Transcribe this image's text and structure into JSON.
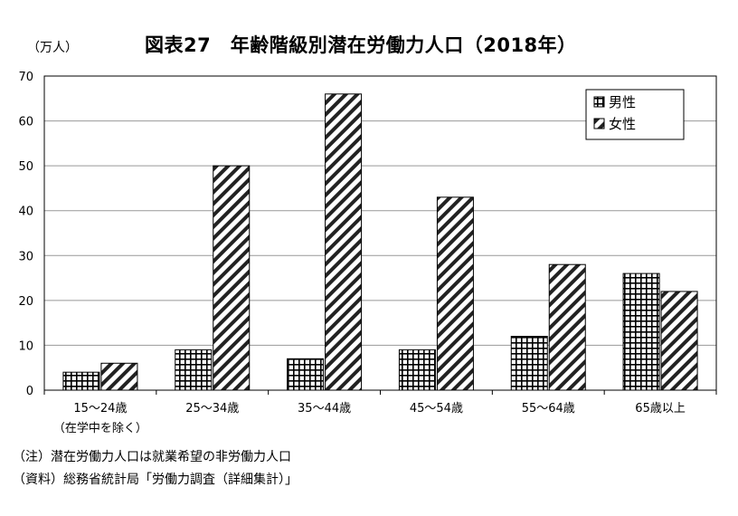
{
  "unit_label": "（万人）",
  "title": "図表27　年齢階級別潜在労働力人口（2018年）",
  "footnotes": [
    "（注）潜在労働力人口は就業希望の非労働力人口",
    "（資料）総務省統計局「労働力調査（詳細集計）」"
  ],
  "chart_data": {
    "type": "bar",
    "title": "図表27　年齢階級別潜在労働力人口（2018年）",
    "ylabel": "（万人）",
    "xlabel": "",
    "categories": [
      "15～24歳",
      "25～34歳",
      "35～44歳",
      "45～54歳",
      "55～64歳",
      "65歳以上"
    ],
    "category_sublabels": [
      "（在学中を除く）",
      "",
      "",
      "",
      "",
      ""
    ],
    "series": [
      {
        "name": "男性",
        "values": [
          4,
          9,
          7,
          9,
          12,
          26
        ],
        "pattern": "grid"
      },
      {
        "name": "女性",
        "values": [
          6,
          50,
          66,
          43,
          28,
          22
        ],
        "pattern": "diagonal-stripes"
      }
    ],
    "ylim": [
      0,
      70
    ],
    "yticks": [
      0,
      10,
      20,
      30,
      40,
      50,
      60,
      70
    ],
    "grid": true,
    "legend_position": "top-right",
    "colors": {
      "bar_stroke": "#000000",
      "grid": "#999999",
      "fill": "#ffffff"
    }
  }
}
